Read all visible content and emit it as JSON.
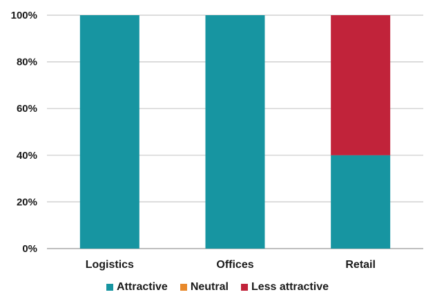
{
  "chart_data": {
    "type": "bar",
    "stacked": true,
    "categories": [
      "Logistics",
      "Offices",
      "Retail"
    ],
    "series": [
      {
        "name": "Attractive",
        "color": "#1795a1",
        "values": [
          100,
          100,
          40
        ]
      },
      {
        "name": "Neutral",
        "color": "#e8892b",
        "values": [
          0,
          0,
          0
        ]
      },
      {
        "name": "Less attractive",
        "color": "#c1233a",
        "values": [
          0,
          0,
          60
        ]
      }
    ],
    "ylim": [
      0,
      100
    ],
    "yticks": [
      0,
      20,
      40,
      60,
      80,
      100
    ],
    "ytick_labels": [
      "0%",
      "20%",
      "40%",
      "60%",
      "80%",
      "100%"
    ],
    "grid": true,
    "legend": "bottom"
  }
}
